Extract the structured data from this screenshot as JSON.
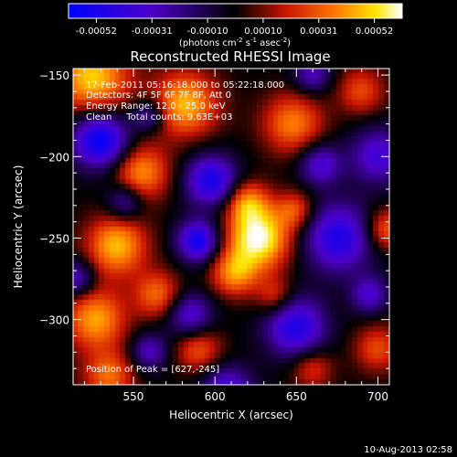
{
  "chart_data": {
    "type": "heatmap",
    "title": "Reconstructed RHESSI Image",
    "xlabel": "Heliocentric X (arcsec)",
    "ylabel": "Heliocentric Y (arcsec)",
    "xlim": [
      513,
      707
    ],
    "ylim": [
      -340,
      -146
    ],
    "xticks": [
      550,
      600,
      650,
      700
    ],
    "yticks": [
      -150,
      -200,
      -250,
      -300
    ],
    "colorbar": {
      "ticks": [
        "-0.00052",
        "-0.00031",
        "-0.00010",
        "0.00010",
        "0.00031",
        "0.00052"
      ],
      "label_main": "(photons cm",
      "label_sup1": "-2",
      "label_mid": " s",
      "label_sup2": "-1",
      "label_end": " asec",
      "label_sup3": "-2",
      "label_close": ")",
      "min": -0.00052,
      "max": 0.00052
    },
    "annotations": [
      "17-Feb-2011 05:16:18.000 to 05:22:18.000",
      "Detectors: 4F 5F 6F 7F 8F, Att 0",
      "Energy Range: 12.0 - 25.0 keV",
      "Clean     Total counts: 9.63E+03"
    ],
    "peak_label": "Position of Peak = [627,-245]",
    "peak": [
      627,
      -245
    ],
    "components": [
      {
        "x": 627,
        "y": -250,
        "sigma": 14,
        "amp": 1.0
      },
      {
        "x": 612,
        "y": -272,
        "sigma": 10,
        "amp": 0.6
      },
      {
        "x": 620,
        "y": -228,
        "sigma": 9,
        "amp": 0.55
      },
      {
        "x": 650,
        "y": -233,
        "sigma": 8,
        "amp": 0.45
      },
      {
        "x": 525,
        "y": -152,
        "sigma": 16,
        "amp": 0.8
      },
      {
        "x": 582,
        "y": -168,
        "sigma": 14,
        "amp": 0.75
      },
      {
        "x": 648,
        "y": -180,
        "sigma": 13,
        "amp": 0.6
      },
      {
        "x": 555,
        "y": -210,
        "sigma": 12,
        "amp": 0.65
      },
      {
        "x": 540,
        "y": -255,
        "sigma": 13,
        "amp": 0.75
      },
      {
        "x": 527,
        "y": -300,
        "sigma": 13,
        "amp": 0.7
      },
      {
        "x": 565,
        "y": -285,
        "sigma": 10,
        "amp": 0.55
      },
      {
        "x": 590,
        "y": -318,
        "sigma": 10,
        "amp": 0.5
      },
      {
        "x": 535,
        "y": -335,
        "sigma": 11,
        "amp": 0.55
      },
      {
        "x": 690,
        "y": -160,
        "sigma": 10,
        "amp": 0.45
      },
      {
        "x": 705,
        "y": -245,
        "sigma": 9,
        "amp": 0.55
      },
      {
        "x": 700,
        "y": -318,
        "sigma": 10,
        "amp": 0.45
      },
      {
        "x": 660,
        "y": -330,
        "sigma": 9,
        "amp": 0.4
      },
      {
        "x": 637,
        "y": -286,
        "sigma": 8,
        "amp": 0.4
      },
      {
        "x": 530,
        "y": -190,
        "sigma": 12,
        "amp": -1.0
      },
      {
        "x": 590,
        "y": -252,
        "sigma": 9,
        "amp": -0.9
      },
      {
        "x": 598,
        "y": -215,
        "sigma": 11,
        "amp": -0.85
      },
      {
        "x": 676,
        "y": -250,
        "sigma": 15,
        "amp": -0.8
      },
      {
        "x": 650,
        "y": -305,
        "sigma": 13,
        "amp": -0.8
      },
      {
        "x": 608,
        "y": -345,
        "sigma": 11,
        "amp": -0.7
      },
      {
        "x": 585,
        "y": -298,
        "sigma": 10,
        "amp": -0.6
      },
      {
        "x": 545,
        "y": -228,
        "sigma": 8,
        "amp": -0.5
      },
      {
        "x": 700,
        "y": -200,
        "sigma": 12,
        "amp": -0.6
      },
      {
        "x": 665,
        "y": -205,
        "sigma": 9,
        "amp": -0.6
      },
      {
        "x": 560,
        "y": -175,
        "sigma": 7,
        "amp": -0.5
      },
      {
        "x": 660,
        "y": -150,
        "sigma": 8,
        "amp": -0.5
      },
      {
        "x": 515,
        "y": -275,
        "sigma": 8,
        "amp": -0.55
      },
      {
        "x": 560,
        "y": -320,
        "sigma": 8,
        "amp": -0.5
      },
      {
        "x": 695,
        "y": -285,
        "sigma": 8,
        "amp": -0.55
      }
    ]
  },
  "footer": {
    "timestamp": "10-Aug-2013 02:58"
  }
}
